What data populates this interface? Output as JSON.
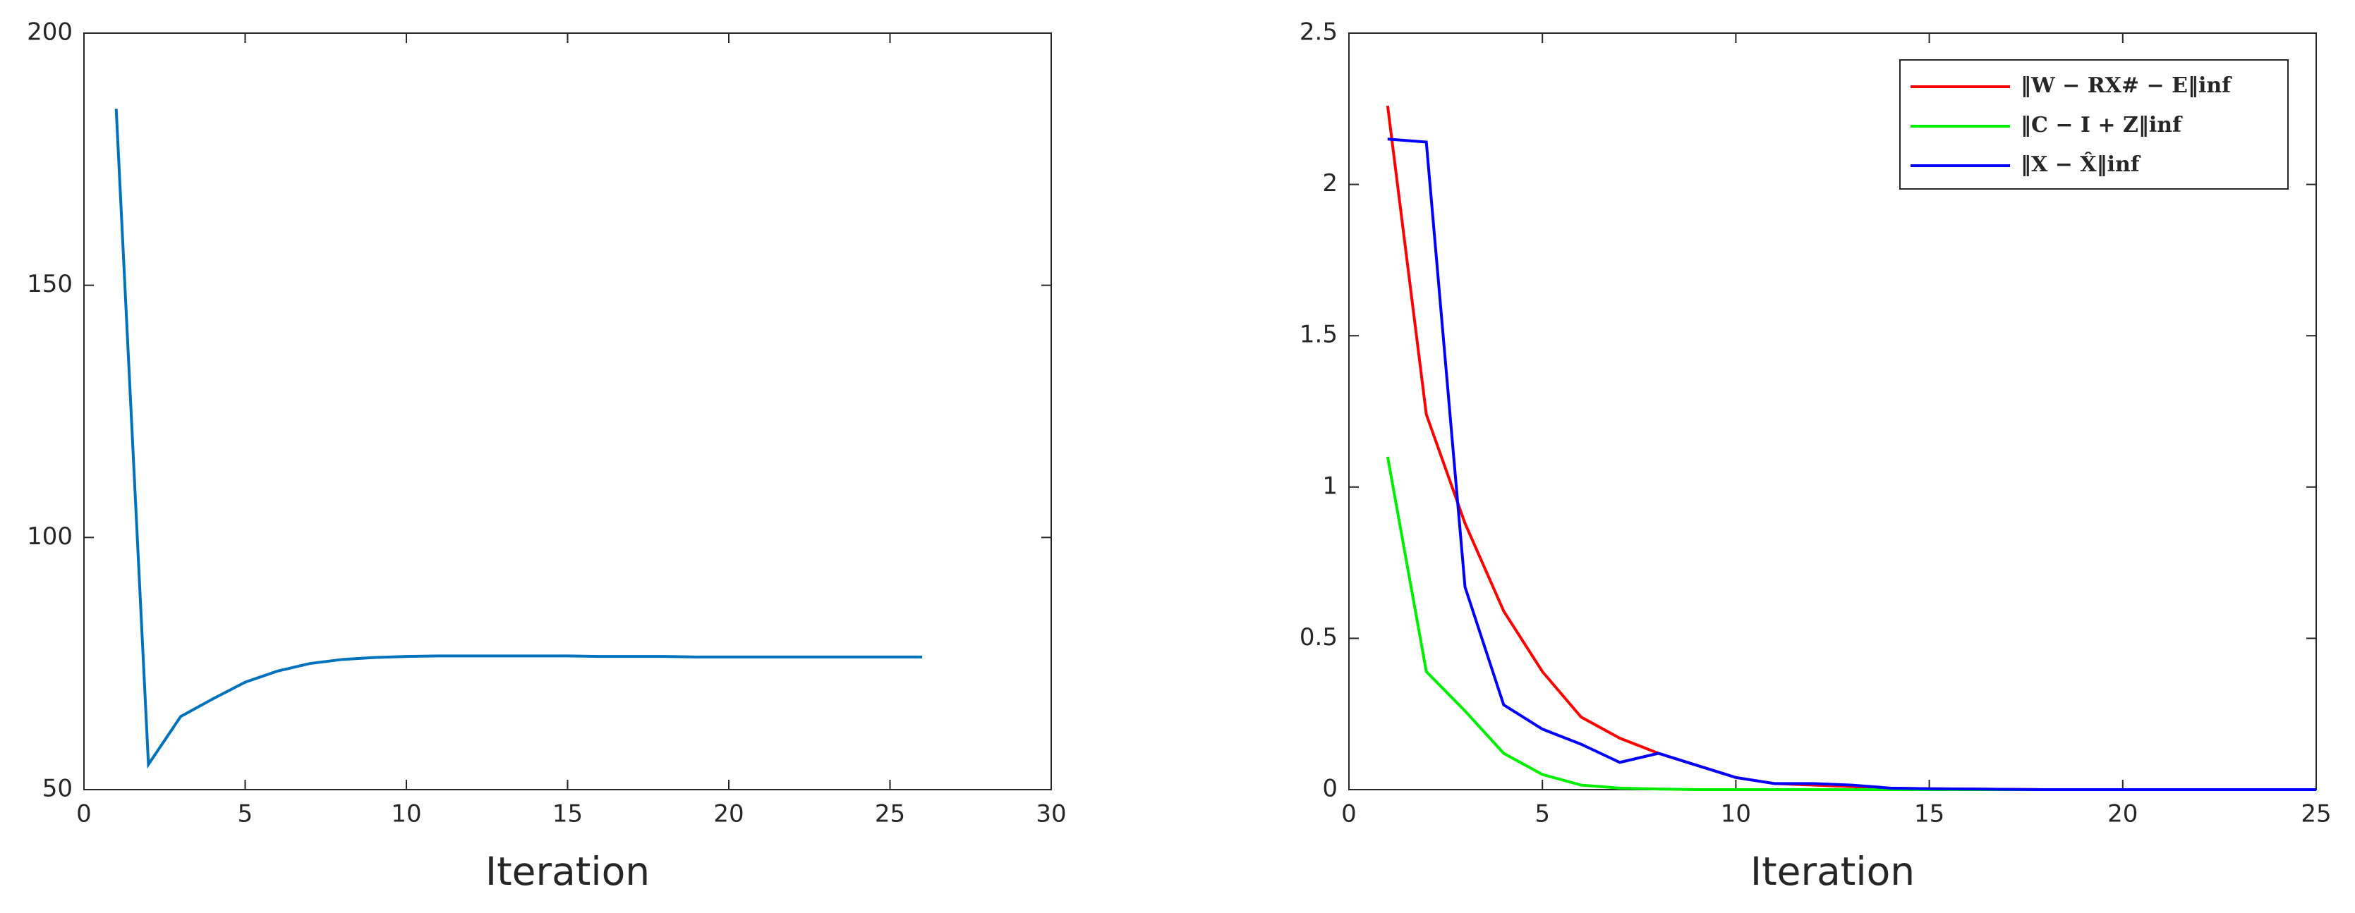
{
  "chart_data": [
    {
      "type": "line",
      "xlabel": "Iteration",
      "x": [
        1,
        2,
        3,
        4,
        5,
        6,
        7,
        8,
        9,
        10,
        11,
        12,
        13,
        14,
        15,
        16,
        17,
        18,
        19,
        20,
        21,
        22,
        23,
        24,
        25,
        26
      ],
      "series": [
        {
          "color": "#0072bd",
          "values": [
            185,
            55,
            64.5,
            68,
            71.3,
            73.5,
            75,
            75.8,
            76.2,
            76.4,
            76.5,
            76.5,
            76.5,
            76.5,
            76.5,
            76.4,
            76.4,
            76.4,
            76.3,
            76.3,
            76.3,
            76.3,
            76.3,
            76.3,
            76.3,
            76.3
          ]
        }
      ],
      "xlim": [
        0,
        30
      ],
      "xticks": [
        0,
        5,
        10,
        15,
        20,
        25,
        30
      ],
      "ylim": [
        50,
        200
      ],
      "yticks": [
        50,
        100,
        150,
        200
      ]
    },
    {
      "type": "line",
      "xlabel": "Iteration",
      "x": [
        1,
        2,
        3,
        4,
        5,
        6,
        7,
        8,
        9,
        10,
        11,
        12,
        13,
        14,
        15,
        16,
        17,
        18,
        19,
        20,
        21,
        22,
        23,
        24,
        25
      ],
      "series": [
        {
          "name": "‖W − RX# − E‖inf",
          "color": "#ff0000",
          "values": [
            2.26,
            1.24,
            0.88,
            0.59,
            0.39,
            0.24,
            0.17,
            0.12,
            0.08,
            0.04,
            0.02,
            0.015,
            0.01,
            0.005,
            0.003,
            0.002,
            0.001,
            0,
            0,
            0,
            0,
            0,
            0,
            0,
            0
          ]
        },
        {
          "name": "‖C − I + Z‖inf",
          "color": "#00ee00",
          "values": [
            1.1,
            0.39,
            0.26,
            0.12,
            0.05,
            0.015,
            0.005,
            0.002,
            0,
            0,
            0,
            0,
            0,
            0,
            0,
            0,
            0,
            0,
            0,
            0,
            0,
            0,
            0,
            0,
            0
          ]
        },
        {
          "name": "‖X − X̂‖inf",
          "color": "#0000ff",
          "values": [
            2.15,
            2.14,
            0.67,
            0.28,
            0.2,
            0.15,
            0.09,
            0.12,
            0.08,
            0.04,
            0.02,
            0.02,
            0.015,
            0.005,
            0.003,
            0.002,
            0.001,
            0,
            0,
            0,
            0,
            0,
            0,
            0,
            0
          ]
        }
      ],
      "xlim": [
        0,
        25
      ],
      "xticks": [
        0,
        5,
        10,
        15,
        20,
        25
      ],
      "ylim": [
        0,
        2.5
      ],
      "yticks": [
        0,
        0.5,
        1,
        1.5,
        2,
        2.5
      ],
      "legend": "upper right"
    }
  ]
}
